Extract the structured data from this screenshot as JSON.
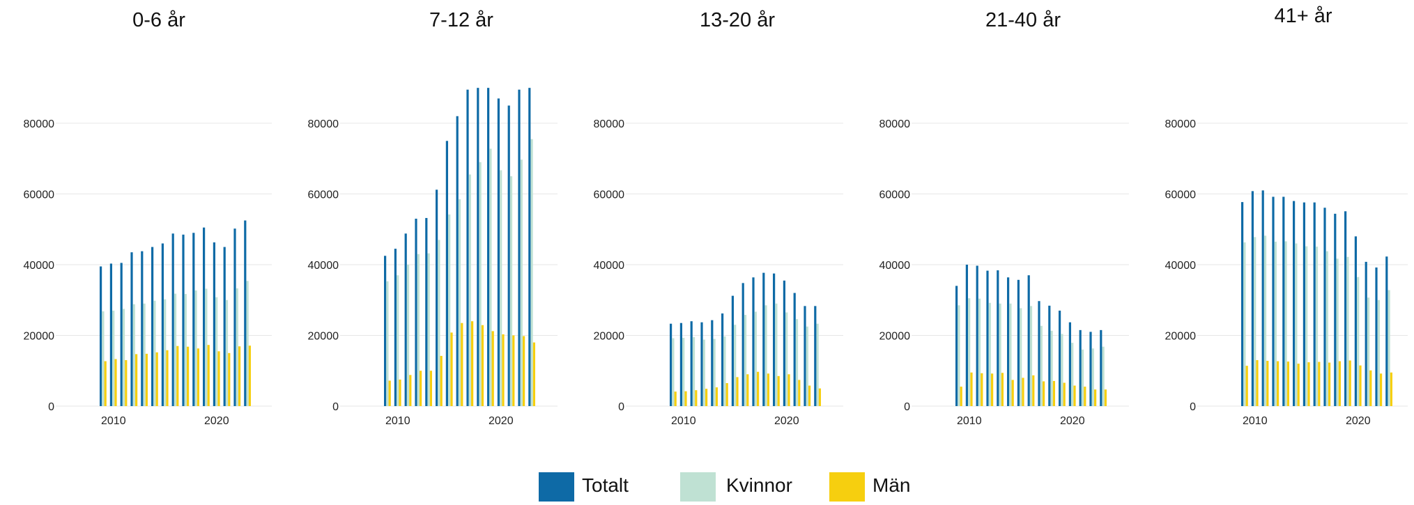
{
  "colors": {
    "totalt": "#0e6aa6",
    "kvinnor": "#bfe1d3",
    "man": "#f6cf0f",
    "grid": "#e6e6e6",
    "text": "#222222"
  },
  "legend": {
    "items": [
      {
        "label": "Totalt",
        "color": "#0e6aa6"
      },
      {
        "label": "Kvinnor",
        "color": "#bfe1d3"
      },
      {
        "label": "Män",
        "color": "#f6cf0f"
      }
    ]
  },
  "chart_data": [
    {
      "type": "bar",
      "title": "0-6 år",
      "x": [
        2009,
        2010,
        2011,
        2012,
        2013,
        2014,
        2015,
        2016,
        2017,
        2018,
        2019,
        2020,
        2021,
        2022,
        2023
      ],
      "xticks": [
        2010,
        2020
      ],
      "yticks": [
        0,
        20000,
        40000,
        60000,
        80000
      ],
      "ylim": [
        0,
        92000
      ],
      "series": [
        {
          "name": "Totalt",
          "values": [
            39500,
            40300,
            40500,
            43500,
            43800,
            45000,
            46000,
            48800,
            48500,
            49000,
            50500,
            46300,
            45000,
            50200,
            52500
          ]
        },
        {
          "name": "Kvinnor",
          "values": [
            26800,
            27000,
            27500,
            28800,
            29000,
            29800,
            30200,
            31800,
            31700,
            32700,
            33200,
            30800,
            30000,
            33300,
            35400
          ]
        },
        {
          "name": "Män",
          "values": [
            12700,
            13300,
            13000,
            14700,
            14800,
            15200,
            15800,
            17000,
            16800,
            16300,
            17300,
            15500,
            15000,
            16900,
            17100
          ]
        }
      ]
    },
    {
      "type": "bar",
      "title": "7-12 år",
      "x": [
        2009,
        2010,
        2011,
        2012,
        2013,
        2014,
        2015,
        2016,
        2017,
        2018,
        2019,
        2020,
        2021,
        2022,
        2023
      ],
      "xticks": [
        2010,
        2020
      ],
      "yticks": [
        0,
        20000,
        40000,
        60000,
        80000
      ],
      "ylim": [
        0,
        92000
      ],
      "series": [
        {
          "name": "Totalt",
          "values": [
            42500,
            44500,
            48800,
            53000,
            53200,
            61200,
            75000,
            82000,
            89500,
            90000,
            90000,
            87000,
            85000,
            89500,
            90000
          ]
        },
        {
          "name": "Kvinnor",
          "values": [
            35300,
            37000,
            40000,
            43000,
            43200,
            47000,
            54200,
            58500,
            65500,
            69000,
            72800,
            66700,
            65000,
            69700,
            75500
          ]
        },
        {
          "name": "Män",
          "values": [
            7200,
            7500,
            8800,
            10000,
            10000,
            14200,
            20800,
            23500,
            24000,
            22900,
            21200,
            20300,
            20000,
            19800,
            18000
          ]
        }
      ]
    },
    {
      "type": "bar",
      "title": "13-20 år",
      "x": [
        2009,
        2010,
        2011,
        2012,
        2013,
        2014,
        2015,
        2016,
        2017,
        2018,
        2019,
        2020,
        2021,
        2022,
        2023
      ],
      "xticks": [
        2010,
        2020
      ],
      "yticks": [
        0,
        20000,
        40000,
        60000,
        80000
      ],
      "ylim": [
        0,
        92000
      ],
      "series": [
        {
          "name": "Totalt",
          "values": [
            23300,
            23500,
            24000,
            23700,
            24300,
            26200,
            31200,
            34800,
            36400,
            37700,
            37500,
            35500,
            32000,
            28300,
            28300
          ]
        },
        {
          "name": "Kvinnor",
          "values": [
            19200,
            19300,
            19500,
            18800,
            19000,
            19700,
            23000,
            25800,
            26700,
            28500,
            29000,
            26500,
            24600,
            22500,
            23300
          ]
        },
        {
          "name": "Män",
          "values": [
            4100,
            4200,
            4500,
            4900,
            5300,
            6500,
            8200,
            9000,
            9700,
            9200,
            8500,
            9000,
            7400,
            5800,
            5000
          ]
        }
      ]
    },
    {
      "type": "bar",
      "title": "21-40 år",
      "x": [
        2009,
        2010,
        2011,
        2012,
        2013,
        2014,
        2015,
        2016,
        2017,
        2018,
        2019,
        2020,
        2021,
        2022,
        2023
      ],
      "xticks": [
        2010,
        2020
      ],
      "yticks": [
        0,
        20000,
        40000,
        60000,
        80000
      ],
      "ylim": [
        0,
        92000
      ],
      "series": [
        {
          "name": "Totalt",
          "values": [
            34000,
            40000,
            39700,
            38300,
            38400,
            36400,
            35700,
            37000,
            29700,
            28400,
            27000,
            23700,
            21500,
            21000,
            21500
          ]
        },
        {
          "name": "Kvinnor",
          "values": [
            28500,
            30500,
            30400,
            29200,
            29000,
            29000,
            27700,
            28300,
            22700,
            21300,
            20400,
            17900,
            16000,
            16300,
            16800
          ]
        },
        {
          "name": "Män",
          "values": [
            5500,
            9500,
            9300,
            9200,
            9400,
            7400,
            8000,
            8700,
            7000,
            7100,
            6600,
            5800,
            5500,
            4700,
            4700
          ]
        }
      ]
    },
    {
      "type": "bar",
      "title": "41+ år",
      "x": [
        2009,
        2010,
        2011,
        2012,
        2013,
        2014,
        2015,
        2016,
        2017,
        2018,
        2019,
        2020,
        2021,
        2022,
        2023
      ],
      "xticks": [
        2010,
        2020
      ],
      "yticks": [
        0,
        20000,
        40000,
        60000,
        80000
      ],
      "ylim": [
        0,
        92000
      ],
      "series": [
        {
          "name": "Totalt",
          "values": [
            57700,
            60800,
            61000,
            59200,
            59200,
            58000,
            57600,
            57600,
            56100,
            54400,
            55100,
            48000,
            40800,
            39200,
            42300
          ]
        },
        {
          "name": "Kvinnor",
          "values": [
            46300,
            47800,
            48200,
            46500,
            46600,
            46000,
            45200,
            45100,
            43800,
            41700,
            42200,
            36500,
            30700,
            30000,
            32800
          ]
        },
        {
          "name": "Män",
          "values": [
            11400,
            13000,
            12800,
            12700,
            12600,
            12000,
            12400,
            12500,
            12300,
            12700,
            12900,
            11500,
            10100,
            9200,
            9500
          ]
        }
      ]
    }
  ]
}
